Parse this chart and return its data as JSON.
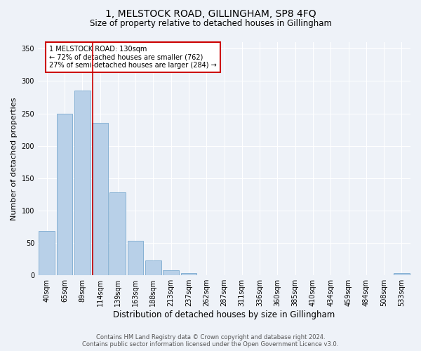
{
  "title": "1, MELSTOCK ROAD, GILLINGHAM, SP8 4FQ",
  "subtitle": "Size of property relative to detached houses in Gillingham",
  "xlabel": "Distribution of detached houses by size in Gillingham",
  "ylabel": "Number of detached properties",
  "bar_labels": [
    "40sqm",
    "65sqm",
    "89sqm",
    "114sqm",
    "139sqm",
    "163sqm",
    "188sqm",
    "213sqm",
    "237sqm",
    "262sqm",
    "287sqm",
    "311sqm",
    "336sqm",
    "360sqm",
    "385sqm",
    "410sqm",
    "434sqm",
    "459sqm",
    "484sqm",
    "508sqm",
    "533sqm"
  ],
  "bar_values": [
    68,
    249,
    285,
    235,
    128,
    53,
    23,
    8,
    4,
    0,
    0,
    0,
    0,
    0,
    0,
    0,
    0,
    0,
    0,
    0,
    3
  ],
  "bar_color": "#b8d0e8",
  "bar_edge_color": "#7aaacf",
  "vline_color": "#cc0000",
  "ylim": [
    0,
    360
  ],
  "yticks": [
    0,
    50,
    100,
    150,
    200,
    250,
    300,
    350
  ],
  "annotation_text": "1 MELSTOCK ROAD: 130sqm\n← 72% of detached houses are smaller (762)\n27% of semi-detached houses are larger (284) →",
  "annotation_box_color": "#ffffff",
  "annotation_box_edge": "#cc0000",
  "footer_line1": "Contains HM Land Registry data © Crown copyright and database right 2024.",
  "footer_line2": "Contains public sector information licensed under the Open Government Licence v3.0.",
  "bg_color": "#eef2f8",
  "plot_bg_color": "#eef2f8",
  "grid_color": "#ffffff",
  "title_fontsize": 10,
  "subtitle_fontsize": 8.5,
  "tick_fontsize": 7,
  "ylabel_fontsize": 8,
  "xlabel_fontsize": 8.5,
  "vline_x_index": 2.57
}
